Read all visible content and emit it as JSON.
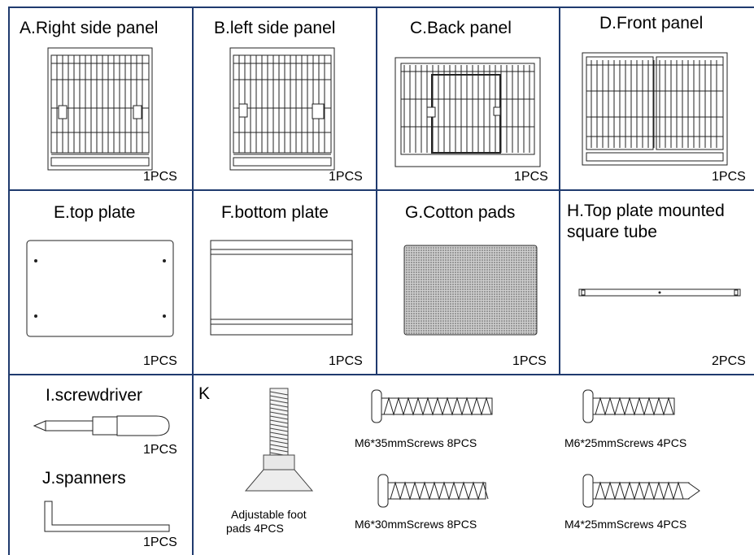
{
  "row1": {
    "a": {
      "title": "A.Right side panel",
      "qty": "1PCS"
    },
    "b": {
      "title": "B.left side panel",
      "qty": "1PCS"
    },
    "c": {
      "title": "C.Back panel",
      "qty": "1PCS"
    },
    "d": {
      "title": "D.Front panel",
      "qty": "1PCS"
    }
  },
  "row2": {
    "e": {
      "title": "E.top plate",
      "qty": "1PCS"
    },
    "f": {
      "title": "F.bottom plate",
      "qty": "1PCS"
    },
    "g": {
      "title": "G.Cotton pads",
      "qty": "1PCS"
    },
    "h": {
      "title_line1": "H.Top plate mounted",
      "title_line2": "square tube",
      "qty": "2PCS"
    }
  },
  "row3": {
    "i": {
      "title": "I.screwdriver",
      "qty": "1PCS"
    },
    "j": {
      "title": "J.spanners",
      "qty": "1PCS"
    },
    "k": {
      "label": "K",
      "foot": {
        "line1": "Adjustable foot",
        "line2": "pads  4PCS"
      },
      "m6_35": "M6*35mmScrews  8PCS",
      "m6_30": "M6*30mmScrews  8PCS",
      "m6_25": "M6*25mmScrews  4PCS",
      "m4_25": "M4*25mmScrews  4PCS"
    }
  }
}
